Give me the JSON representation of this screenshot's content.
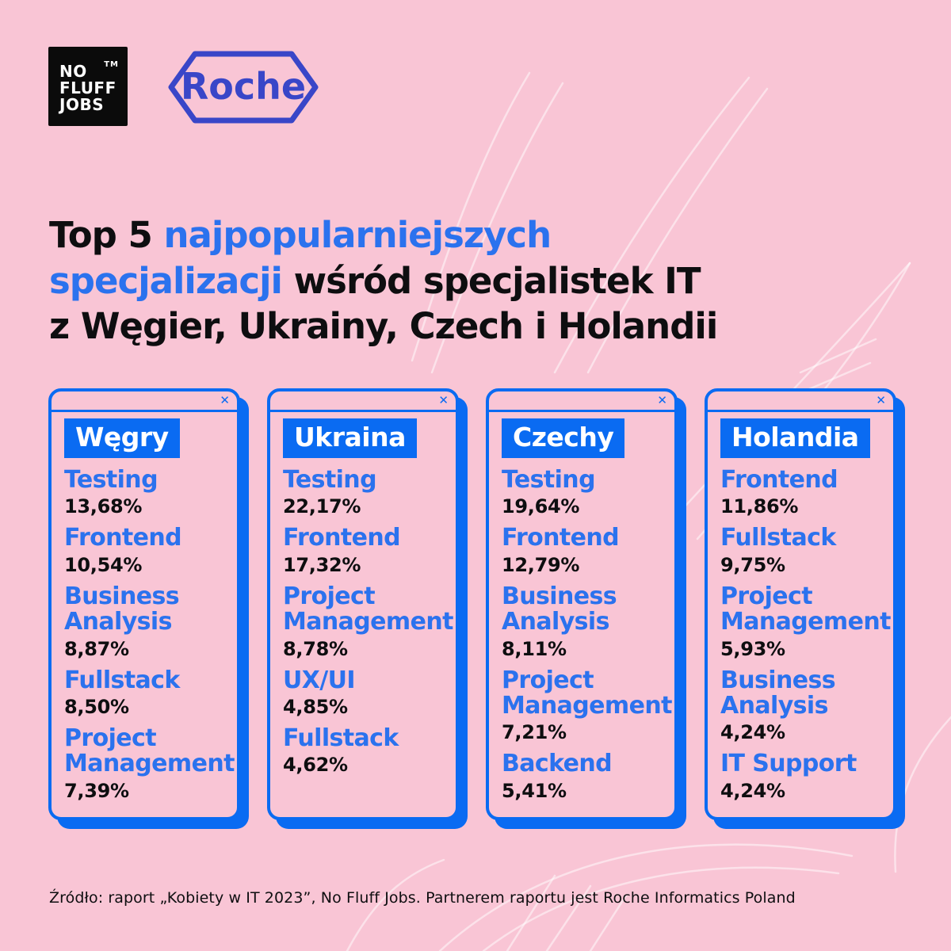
{
  "colors": {
    "background_pink": "#F9C5D5",
    "accent_blue": "#0A6BF2",
    "text_blue": "#2B72EE",
    "roche_blue": "#3946C8",
    "text_dark": "#0E0E10",
    "logo_black": "#0B0B0B",
    "leaf_line": "rgba(255,255,255,0.5)"
  },
  "icons": {
    "close": "✕"
  },
  "logos": {
    "nofluffjobs": {
      "line1": "NO",
      "line2": "FLUFF",
      "line3": "JOBS",
      "tm": "TM"
    },
    "roche": {
      "label": "Roche"
    }
  },
  "title": {
    "line1": {
      "black": "Top 5 ",
      "blue": "najpopularniejszych"
    },
    "line2": {
      "blue": "specjalizacji",
      "black": " wśród specjalistek IT"
    },
    "line3": {
      "black": "z Węgier, Ukrainy, Czech i Holandii"
    }
  },
  "cards": [
    {
      "country": "Węgry",
      "items": [
        {
          "name": "Testing",
          "pct": "13,68%"
        },
        {
          "name": "Frontend",
          "pct": "10,54%"
        },
        {
          "name": "Business Analysis",
          "pct": "8,87%"
        },
        {
          "name": "Fullstack",
          "pct": "8,50%"
        },
        {
          "name": "Project Management",
          "pct": "7,39%"
        }
      ]
    },
    {
      "country": "Ukraina",
      "items": [
        {
          "name": "Testing",
          "pct": "22,17%"
        },
        {
          "name": "Frontend",
          "pct": "17,32%"
        },
        {
          "name": "Project Management",
          "pct": "8,78%"
        },
        {
          "name": "UX/UI",
          "pct": "4,85%"
        },
        {
          "name": "Fullstack",
          "pct": "4,62%"
        }
      ]
    },
    {
      "country": "Czechy",
      "items": [
        {
          "name": "Testing",
          "pct": "19,64%"
        },
        {
          "name": "Frontend",
          "pct": "12,79%"
        },
        {
          "name": "Business Analysis",
          "pct": "8,11%"
        },
        {
          "name": "Project Management",
          "pct": "7,21%"
        },
        {
          "name": "Backend",
          "pct": "5,41%"
        }
      ]
    },
    {
      "country": "Holandia",
      "items": [
        {
          "name": "Frontend",
          "pct": "11,86%"
        },
        {
          "name": "Fullstack",
          "pct": "9,75%"
        },
        {
          "name": "Project Management",
          "pct": "5,93%"
        },
        {
          "name": "Business Analysis",
          "pct": "4,24%"
        },
        {
          "name": "IT Support",
          "pct": "4,24%"
        }
      ]
    }
  ],
  "chart_data": [
    {
      "type": "table",
      "title": "Węgry",
      "unit": "%",
      "categories": [
        "Testing",
        "Frontend",
        "Business Analysis",
        "Fullstack",
        "Project Management"
      ],
      "values": [
        13.68,
        10.54,
        8.87,
        8.5,
        7.39
      ]
    },
    {
      "type": "table",
      "title": "Ukraina",
      "unit": "%",
      "categories": [
        "Testing",
        "Frontend",
        "Project Management",
        "UX/UI",
        "Fullstack"
      ],
      "values": [
        22.17,
        17.32,
        8.78,
        4.85,
        4.62
      ]
    },
    {
      "type": "table",
      "title": "Czechy",
      "unit": "%",
      "categories": [
        "Testing",
        "Frontend",
        "Business Analysis",
        "Project Management",
        "Backend"
      ],
      "values": [
        19.64,
        12.79,
        8.11,
        7.21,
        5.41
      ]
    },
    {
      "type": "table",
      "title": "Holandia",
      "unit": "%",
      "categories": [
        "Frontend",
        "Fullstack",
        "Project Management",
        "Business Analysis",
        "IT Support"
      ],
      "values": [
        11.86,
        9.75,
        5.93,
        4.24,
        4.24
      ]
    },
    {
      "overall_title": "Top 5 najpopularniejszych specjalizacji wśród specjalistek IT z Węgier, Ukrainy, Czech i Holandii"
    }
  ],
  "footer": {
    "text": "Źródło: raport „Kobiety w IT 2023”, No Fluff Jobs. Partnerem raportu jest Roche Informatics Poland"
  }
}
